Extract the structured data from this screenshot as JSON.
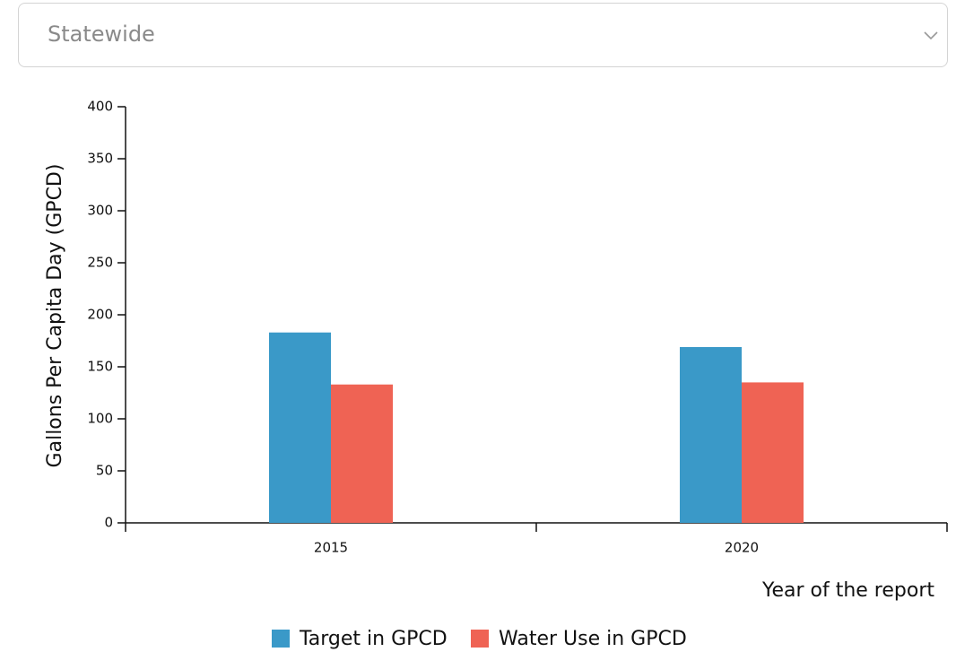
{
  "dropdown": {
    "selected": "Statewide"
  },
  "chart_data": {
    "type": "bar",
    "y_label": "Gallons Per Capita Day (GPCD)",
    "x_label": "Year of the report",
    "categories": [
      "2015",
      "2020"
    ],
    "series": [
      {
        "name": "Target in GPCD",
        "color": "#3a99c8",
        "values": [
          183,
          169
        ]
      },
      {
        "name": "Water Use in GPCD",
        "color": "#ef6354",
        "values": [
          133,
          135
        ]
      }
    ],
    "ylim": [
      0,
      400
    ],
    "yticks": [
      0,
      50,
      100,
      150,
      200,
      250,
      300,
      350,
      400
    ]
  }
}
